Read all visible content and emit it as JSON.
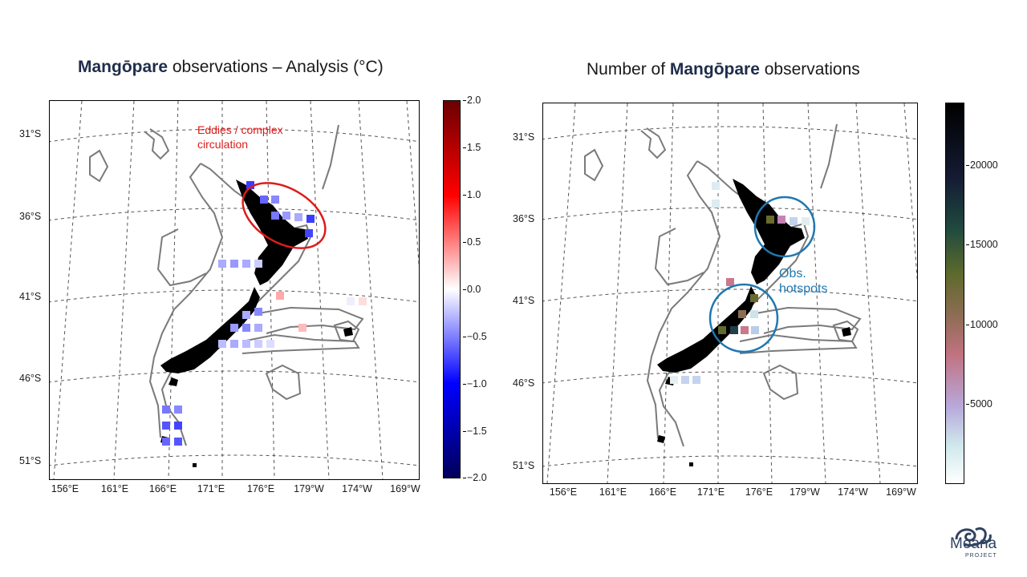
{
  "left_panel": {
    "title_bold": "Mangōpare",
    "title_rest": " observations – Analysis (°C)",
    "lat_labels": [
      "31°S",
      "36°S",
      "41°S",
      "46°S",
      "51°S"
    ],
    "lon_labels": [
      "156°E",
      "161°E",
      "166°E",
      "171°E",
      "176°E",
      "179°W",
      "174°W",
      "169°W"
    ],
    "colorbar_ticks": [
      "2.0",
      "1.5",
      "1.0",
      "0.5",
      "0.0",
      "−0.5",
      "−1.0",
      "−1.5",
      "−2.0"
    ],
    "colorbar_range": [
      -2.0,
      2.0
    ],
    "annotation_line1": "Eddies / complex",
    "annotation_line2": "circulation",
    "annotation_color": "#dd1b1b"
  },
  "right_panel": {
    "title_pre": "Number of ",
    "title_bold": "Mangōpare",
    "title_rest": " observations",
    "lat_labels": [
      "31°S",
      "36°S",
      "41°S",
      "46°S",
      "51°S"
    ],
    "lon_labels": [
      "156°E",
      "161°E",
      "166°E",
      "171°E",
      "176°E",
      "179°W",
      "174°W",
      "169°W"
    ],
    "colorbar_ticks": [
      "20000",
      "15000",
      "10000",
      "5000"
    ],
    "colorbar_range": [
      0,
      24000
    ],
    "annotation_line1": "Obs.",
    "annotation_line2": "hotspots",
    "annotation_color": "#1f78b0"
  },
  "logo": {
    "name": "Moana",
    "sub": "PROJECT"
  },
  "colors": {
    "title_bold": "#1f2d4a",
    "land": "#000000",
    "contour": "#7a7a7a"
  }
}
